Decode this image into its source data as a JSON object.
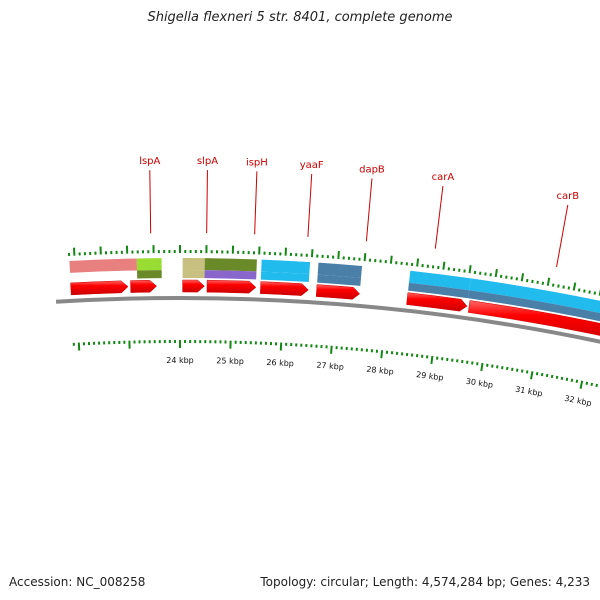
{
  "title": "Shigella flexneri 5 str. 8401, complete genome",
  "footer": {
    "accession": "Accession: NC_008258",
    "summary": "Topology: circular; Length: 4,574,284 bp; Genes: 4,233"
  },
  "colors": {
    "label": "#cc0000",
    "tick": "#118811",
    "forward_feature": "#ff0000",
    "backbone": "#888888"
  },
  "gene_labels": [
    {
      "name": "lspA",
      "kbp": 23.45
    },
    {
      "name": "slpA",
      "kbp": 24.5
    },
    {
      "name": "ispH",
      "kbp": 25.4
    },
    {
      "name": "yaaF",
      "kbp": 26.4
    },
    {
      "name": "dapB",
      "kbp": 27.5
    },
    {
      "name": "carA",
      "kbp": 28.8
    },
    {
      "name": "carB",
      "kbp": 31.1
    }
  ],
  "kbp_ticks": [
    "24 kbp",
    "25 kbp",
    "26 kbp",
    "27 kbp",
    "28 kbp",
    "29 kbp",
    "30 kbp",
    "31 kbp",
    "32 kbp"
  ],
  "features": [
    {
      "track": 1,
      "start": 21.9,
      "end": 23.18,
      "color": "#e88080"
    },
    {
      "track": 1,
      "start": 23.18,
      "end": 23.65,
      "color": "#99dd33"
    },
    {
      "track": 2,
      "start": 23.18,
      "end": 23.65,
      "color": "#6a8a2a"
    },
    {
      "track": 1,
      "start": 24.05,
      "end": 24.47,
      "color": "#c8c080"
    },
    {
      "track": 2,
      "start": 24.05,
      "end": 24.47,
      "color": "#c8c080"
    },
    {
      "track": 1,
      "start": 24.47,
      "end": 25.46,
      "color": "#6a8a2a"
    },
    {
      "track": 2,
      "start": 24.47,
      "end": 25.46,
      "color": "#8866cc"
    },
    {
      "track": 1,
      "start": 25.55,
      "end": 26.47,
      "color": "#22bbee"
    },
    {
      "track": 2,
      "start": 25.55,
      "end": 26.47,
      "color": "#22bbee"
    },
    {
      "track": 1,
      "start": 26.63,
      "end": 27.46,
      "color": "#4a7fa8"
    },
    {
      "track": 2,
      "start": 26.63,
      "end": 27.46,
      "color": "#4a7fa8"
    },
    {
      "track": 1,
      "start": 28.38,
      "end": 29.54,
      "color": "#22bbee"
    },
    {
      "track": 2,
      "start": 28.38,
      "end": 29.54,
      "color": "#4a7fa8"
    },
    {
      "track": 1,
      "start": 29.54,
      "end": 32.95,
      "color": "#22bbee"
    },
    {
      "track": 2,
      "start": 29.54,
      "end": 32.95,
      "color": "#4a7fa8"
    }
  ],
  "genes": [
    {
      "start": 21.9,
      "end": 23.0
    },
    {
      "start": 23.05,
      "end": 23.55
    },
    {
      "start": 24.05,
      "end": 24.47
    },
    {
      "start": 24.52,
      "end": 25.46
    },
    {
      "start": 25.55,
      "end": 26.47
    },
    {
      "start": 26.63,
      "end": 27.46
    },
    {
      "start": 28.38,
      "end": 29.54
    },
    {
      "start": 29.58,
      "end": 32.95
    }
  ]
}
